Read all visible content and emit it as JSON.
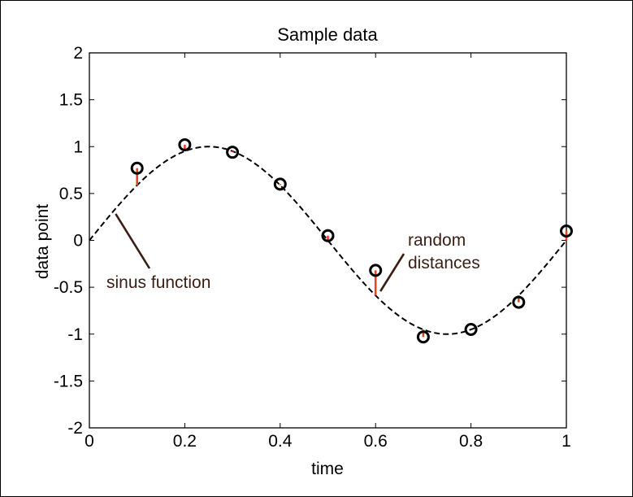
{
  "chart_data": {
    "type": "scatter",
    "title": "Sample data",
    "xlabel": "time",
    "ylabel": "data point",
    "xlim": [
      0,
      1
    ],
    "ylim": [
      -2,
      2
    ],
    "xticks": [
      "0",
      "0.2",
      "0.4",
      "0.6",
      "0.8",
      "1"
    ],
    "yticks": [
      "2",
      "1.5",
      "1",
      "0.5",
      "0",
      "-0.5",
      "-1",
      "-1.5",
      "-2"
    ],
    "grid": false,
    "curve": {
      "function": "sin(2*pi*x)",
      "x_range": [
        0,
        1
      ],
      "style": "dashed",
      "color": "#000000"
    },
    "points": {
      "x": [
        0.1,
        0.2,
        0.3,
        0.4,
        0.5,
        0.6,
        0.7,
        0.8,
        0.9,
        1.0
      ],
      "y": [
        0.77,
        1.02,
        0.94,
        0.6,
        0.05,
        -0.32,
        -1.03,
        -0.95,
        -0.66,
        0.1
      ],
      "marker": "circle",
      "color": "#000000"
    },
    "residuals_color": "#e8441f",
    "annotations": [
      {
        "text": "sinus function",
        "target_x": 0.05
      },
      {
        "lines": [
          "random",
          "distances"
        ],
        "target_x": 0.6
      }
    ]
  }
}
